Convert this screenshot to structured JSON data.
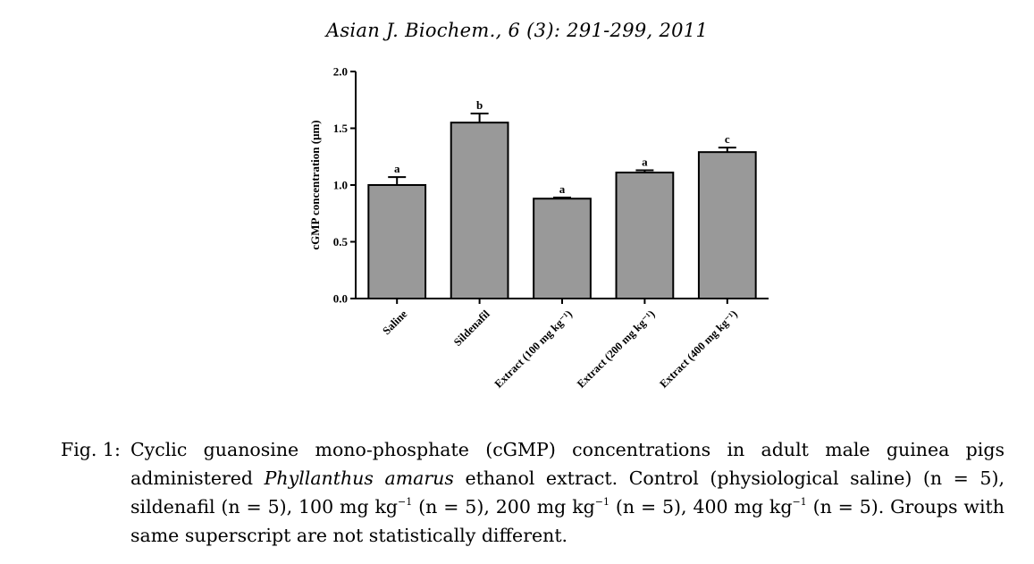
{
  "header": {
    "citation": "Asian J. Biochem., 6 (3): 291-299, 2011"
  },
  "chart_data": {
    "type": "bar",
    "ylabel": "cGMP concentration (μm)",
    "ylim": [
      0,
      2.0
    ],
    "yticks": [
      "0.0",
      "0.5",
      "1.0",
      "1.5",
      "2.0"
    ],
    "grid": false,
    "categories": [
      "Saline",
      "Sildenafil",
      "Extract  (100 mg kg⁻¹)",
      "Extract (200 mg kg⁻¹)",
      "Extract (400 mg kg⁻¹)"
    ],
    "values": [
      1.0,
      1.55,
      0.88,
      1.11,
      1.29
    ],
    "errors": [
      0.07,
      0.08,
      0.01,
      0.02,
      0.04
    ],
    "annotations": [
      "a",
      "b",
      "a",
      "a",
      "c"
    ],
    "bar_color": "#999999"
  },
  "caption": {
    "label": "Fig. 1:",
    "part1": "Cyclic guanosine mono-phosphate (cGMP) concentrations in adult male guinea pigs administered",
    "species": "Phyllanthus amarus",
    "part2": "ethanol extract. Control (physiological saline) (n = 5), sildenafil (n = 5), 100 mg kg",
    "sup1": "−1",
    "part3": "(n = 5), 200 mg kg",
    "sup2": "−1",
    "part4": "(n = 5), 400 mg kg",
    "sup3": "−1",
    "part5": "(n = 5). Groups with same superscript are not statistically different."
  }
}
